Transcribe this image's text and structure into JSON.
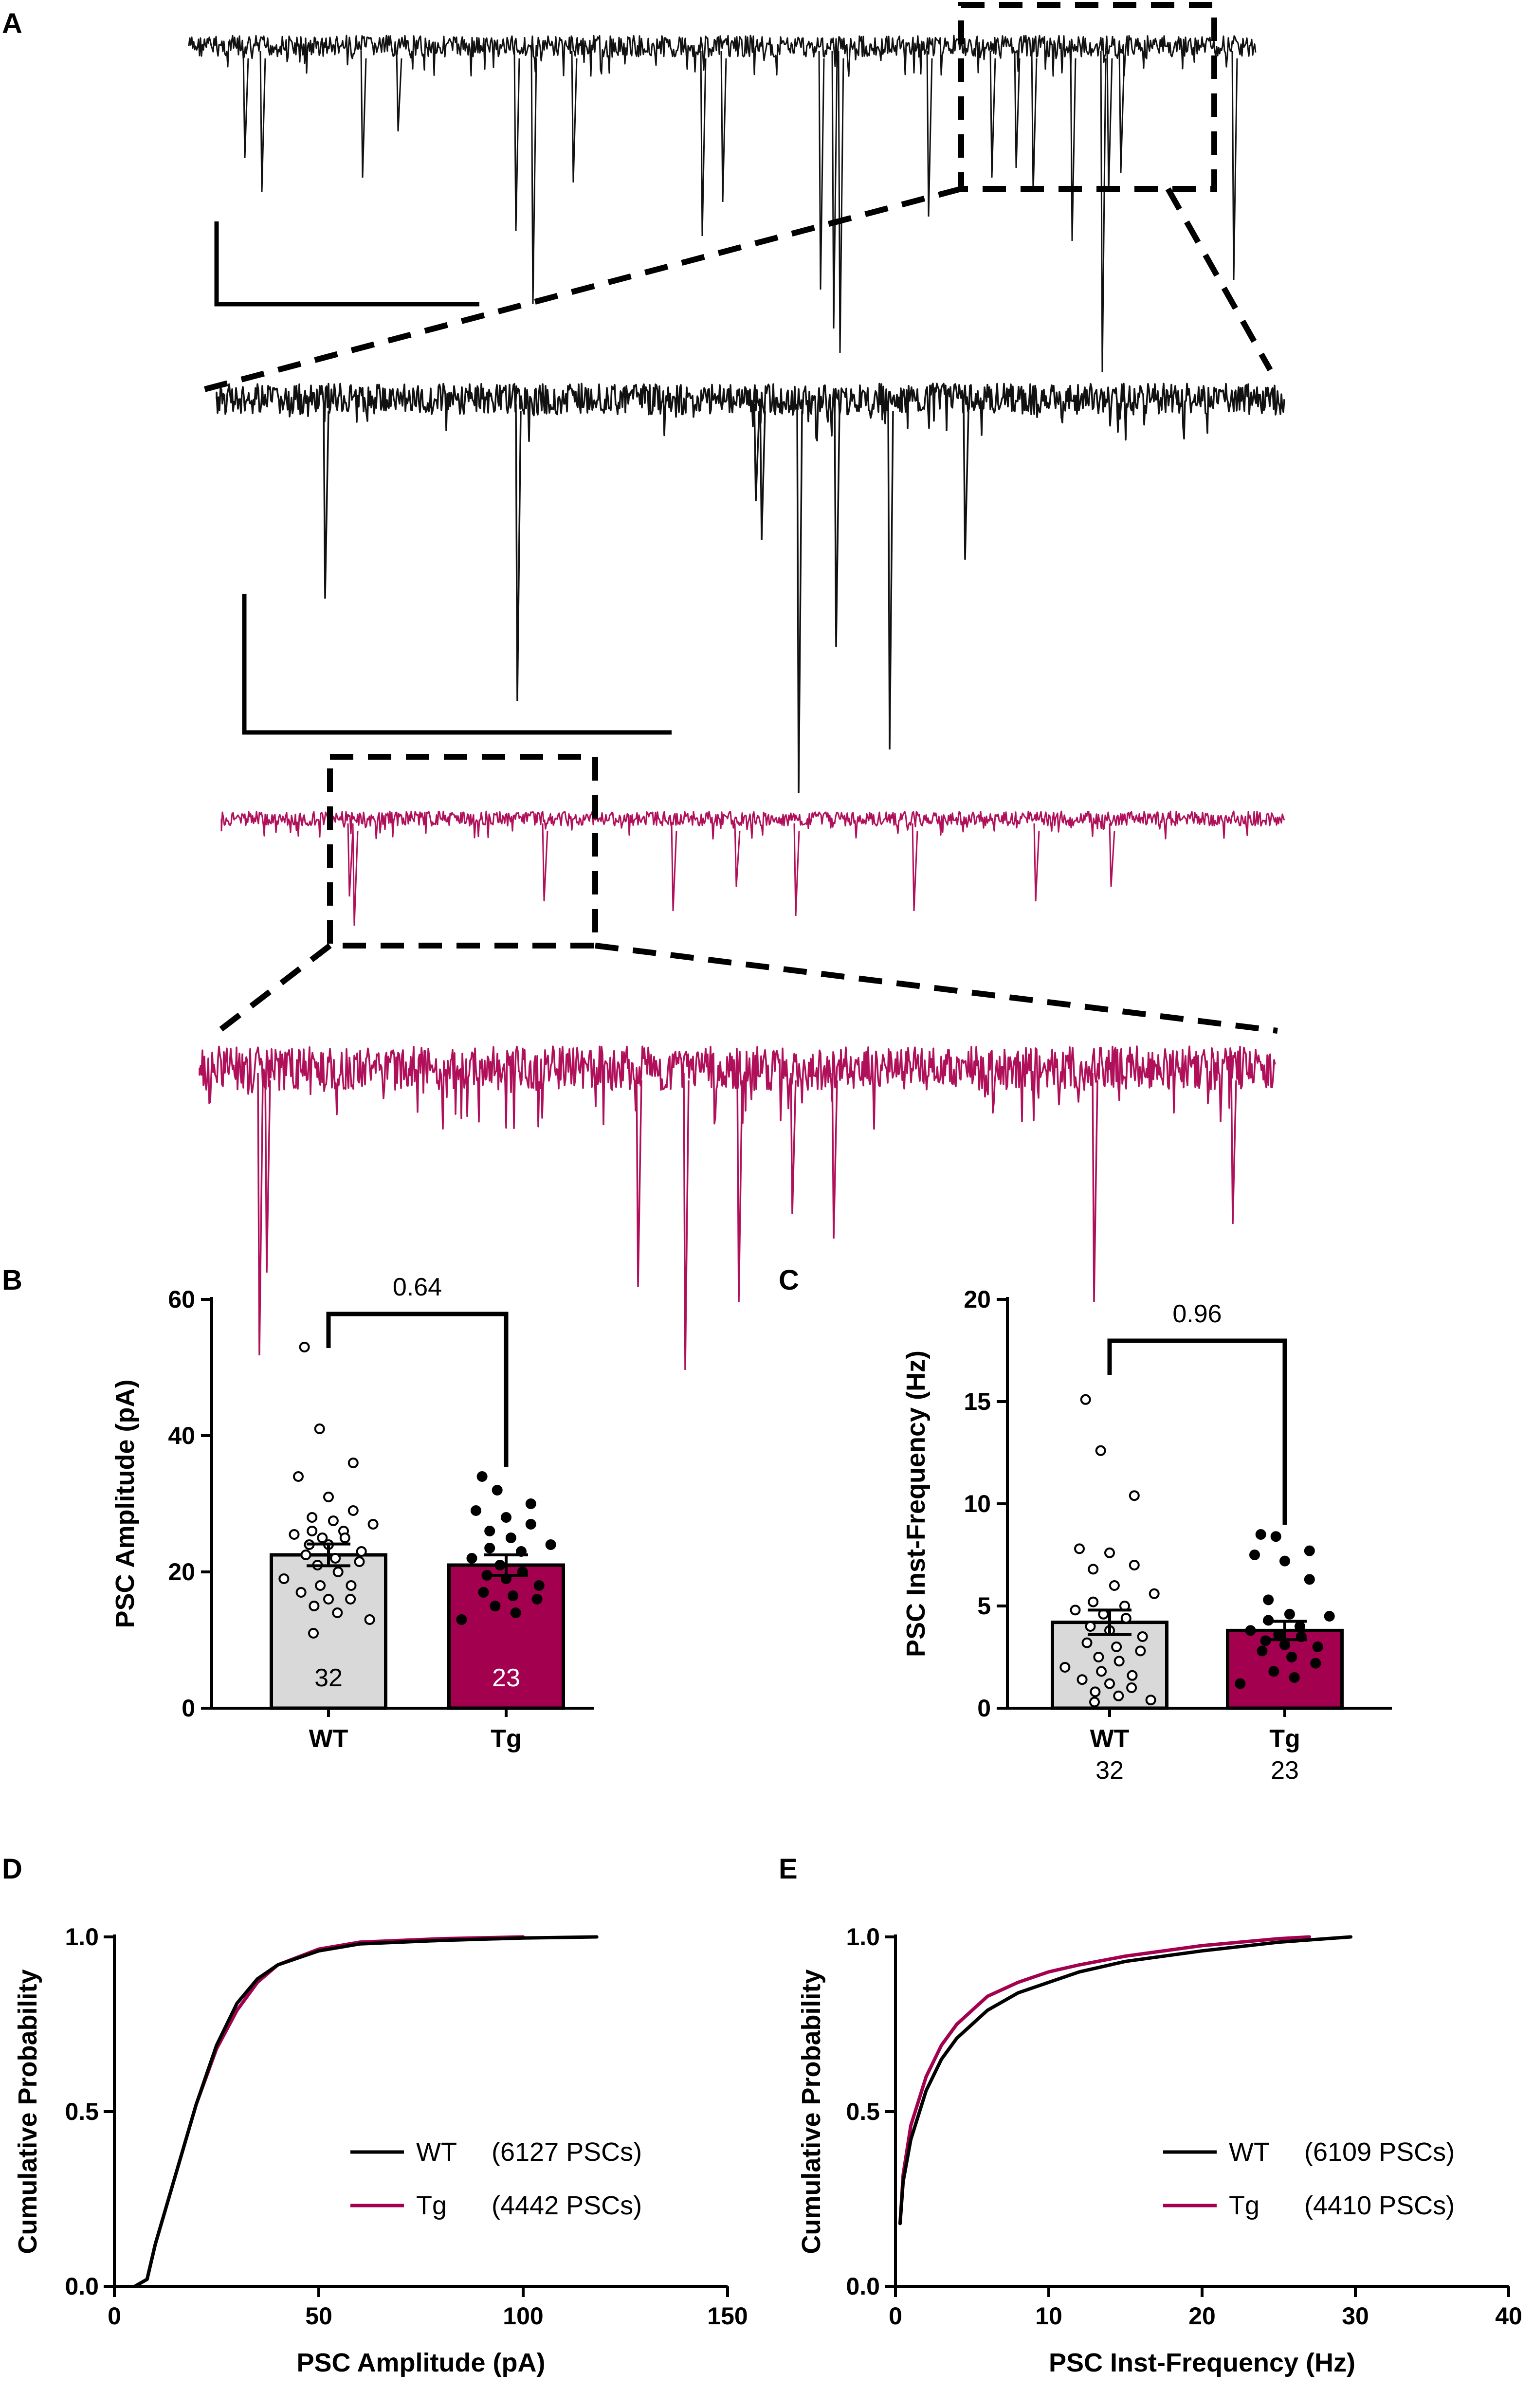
{
  "colors": {
    "wt": "#000000",
    "tg": "#a3004f",
    "wt_bar": "#d9d9d9",
    "tg_bar": "#a3004f",
    "tg_trace": "#b0105a"
  },
  "panel_a": {
    "label": "A"
  },
  "chart_data": [
    {
      "panel": "B",
      "type": "bar",
      "ylabel": "PSC Amplitude (pA)",
      "ylim": [
        0,
        60
      ],
      "yticks": [
        0,
        20,
        40,
        60
      ],
      "categories": [
        "WT",
        "Tg"
      ],
      "values": [
        22.5,
        21.0
      ],
      "sem": [
        1.6,
        1.5
      ],
      "n_labels": [
        "32",
        "23"
      ],
      "p_value": "0.64",
      "points": [
        [
          53,
          41,
          36,
          34,
          31,
          29,
          28,
          27.5,
          27,
          26,
          26,
          25.5,
          25,
          25,
          24,
          24,
          23,
          22.5,
          22,
          21.5,
          21,
          20,
          19,
          18,
          18,
          17,
          16,
          16,
          15,
          14,
          13,
          11
        ],
        [
          34,
          32,
          30,
          29,
          28,
          27,
          26,
          25,
          24,
          23.5,
          23,
          22,
          21,
          20,
          19.5,
          19,
          18,
          17,
          16.5,
          16,
          15,
          14,
          13
        ]
      ]
    },
    {
      "panel": "C",
      "type": "bar",
      "ylabel": "PSC Inst-Frequency (Hz)",
      "ylim": [
        0,
        20
      ],
      "yticks": [
        0,
        5,
        10,
        15,
        20
      ],
      "categories": [
        "WT",
        "Tg"
      ],
      "values": [
        4.2,
        3.8
      ],
      "sem": [
        0.6,
        0.45
      ],
      "n_labels": [
        "32",
        "23"
      ],
      "p_value": "0.96",
      "points": [
        [
          15.1,
          12.6,
          10.4,
          7.8,
          7.6,
          7.0,
          6.8,
          6.0,
          5.6,
          5.2,
          5.0,
          4.8,
          4.6,
          4.4,
          4.0,
          3.8,
          3.5,
          3.2,
          3.0,
          2.8,
          2.5,
          2.3,
          2.0,
          1.8,
          1.6,
          1.4,
          1.2,
          1.0,
          0.8,
          0.6,
          0.4,
          0.3
        ],
        [
          8.5,
          8.4,
          7.7,
          7.5,
          7.2,
          6.3,
          5.3,
          4.6,
          4.5,
          4.3,
          4.0,
          3.8,
          3.6,
          3.5,
          3.3,
          3.1,
          3.0,
          2.8,
          2.5,
          2.2,
          1.8,
          1.5,
          1.2
        ]
      ]
    },
    {
      "panel": "D",
      "type": "line",
      "xlabel": "PSC Amplitude (pA)",
      "ylabel": "Cumulative Probability",
      "xlim": [
        0,
        150
      ],
      "ylim": [
        0,
        1.0
      ],
      "xticks": [
        0,
        50,
        100,
        150
      ],
      "yticks": [
        0.0,
        0.5,
        1.0
      ],
      "tick_labels_y": [
        "0.0",
        "0.5",
        "1.0"
      ],
      "legend": "bottom-right",
      "series": [
        {
          "name": "WT",
          "count_label": "(6127 PSCs)",
          "x": [
            5,
            8,
            10,
            15,
            20,
            25,
            30,
            35,
            40,
            50,
            60,
            80,
            100,
            118
          ],
          "y": [
            0,
            0.02,
            0.12,
            0.32,
            0.52,
            0.69,
            0.81,
            0.88,
            0.92,
            0.96,
            0.98,
            0.99,
            0.997,
            1.0
          ]
        },
        {
          "name": "Tg",
          "count_label": "(4442 PSCs)",
          "x": [
            5,
            8,
            10,
            15,
            20,
            25,
            30,
            35,
            40,
            50,
            60,
            80,
            100
          ],
          "y": [
            0,
            0.02,
            0.12,
            0.32,
            0.52,
            0.68,
            0.79,
            0.87,
            0.92,
            0.965,
            0.985,
            0.995,
            1.0
          ]
        }
      ]
    },
    {
      "panel": "E",
      "type": "line",
      "xlabel": "PSC Inst-Frequency (Hz)",
      "ylabel": "Cumulative Probability",
      "xlim": [
        0,
        40
      ],
      "ylim": [
        0,
        1.0
      ],
      "xticks": [
        0,
        10,
        20,
        30,
        40
      ],
      "yticks": [
        0.0,
        0.5,
        1.0
      ],
      "tick_labels_y": [
        "0.0",
        "0.5",
        "1.0"
      ],
      "legend": "bottom-right",
      "series": [
        {
          "name": "WT",
          "count_label": "(6109 PSCs)",
          "x": [
            0.3,
            0.5,
            1,
            2,
            3,
            4,
            5,
            6,
            8,
            10,
            12,
            15,
            20,
            25,
            29.7
          ],
          "y": [
            0.18,
            0.3,
            0.42,
            0.56,
            0.65,
            0.71,
            0.75,
            0.79,
            0.84,
            0.87,
            0.9,
            0.93,
            0.96,
            0.985,
            1.0
          ]
        },
        {
          "name": "Tg",
          "count_label": "(4410 PSCs)",
          "x": [
            0.3,
            0.5,
            1,
            2,
            3,
            4,
            5,
            6,
            8,
            10,
            12,
            15,
            20,
            25,
            27
          ],
          "y": [
            0.18,
            0.32,
            0.46,
            0.6,
            0.69,
            0.75,
            0.79,
            0.83,
            0.87,
            0.9,
            0.92,
            0.945,
            0.975,
            0.995,
            1.0
          ]
        }
      ]
    }
  ]
}
